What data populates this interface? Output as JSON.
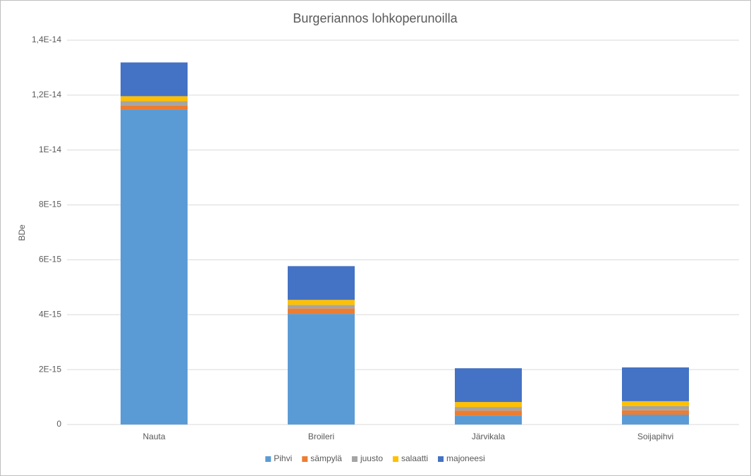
{
  "chart_data": {
    "type": "stacked-bar",
    "title": "Burgeriannos lohkoperunoilla",
    "y_label": "BDe",
    "categories": [
      "Nauta",
      "Broileri",
      "Järvikala",
      "Soijapihvi"
    ],
    "series": [
      {
        "name": "Pihvi",
        "color": "#5b9bd5",
        "values": [
          1.148e-14,
          4.03e-15,
          3.3e-16,
          3.6e-16
        ]
      },
      {
        "name": "sämpylä",
        "color": "#ed7d31",
        "values": [
          1.5e-16,
          2e-16,
          1.8e-16,
          1.6e-16
        ]
      },
      {
        "name": "juusto",
        "color": "#a5a5a5",
        "values": [
          1.5e-16,
          1.3e-16,
          1.3e-16,
          1.5e-16
        ]
      },
      {
        "name": "salaatti",
        "color": "#ffc000",
        "values": [
          1.8e-16,
          1.8e-16,
          1.8e-16,
          1.8e-16
        ]
      },
      {
        "name": "majoneesi",
        "color": "#4472c4",
        "values": [
          1.23e-15,
          1.23e-15,
          1.23e-15,
          1.23e-15
        ]
      }
    ],
    "ylim": [
      0,
      1.4e-14
    ],
    "yticks": [
      0,
      {
        "value": 2e-15,
        "label": "2E-15"
      },
      {
        "value": 4e-15,
        "label": "4E-15"
      },
      {
        "value": 6e-15,
        "label": "6E-15"
      },
      {
        "value": 8e-15,
        "label": "8E-15"
      },
      {
        "value": 1e-14,
        "label": "1E-14"
      },
      {
        "value": 1.2e-14,
        "label": "1,2E-14"
      },
      {
        "value": 1.4e-14,
        "label": "1,4E-14"
      }
    ],
    "grid": true,
    "legend": "bottom"
  }
}
